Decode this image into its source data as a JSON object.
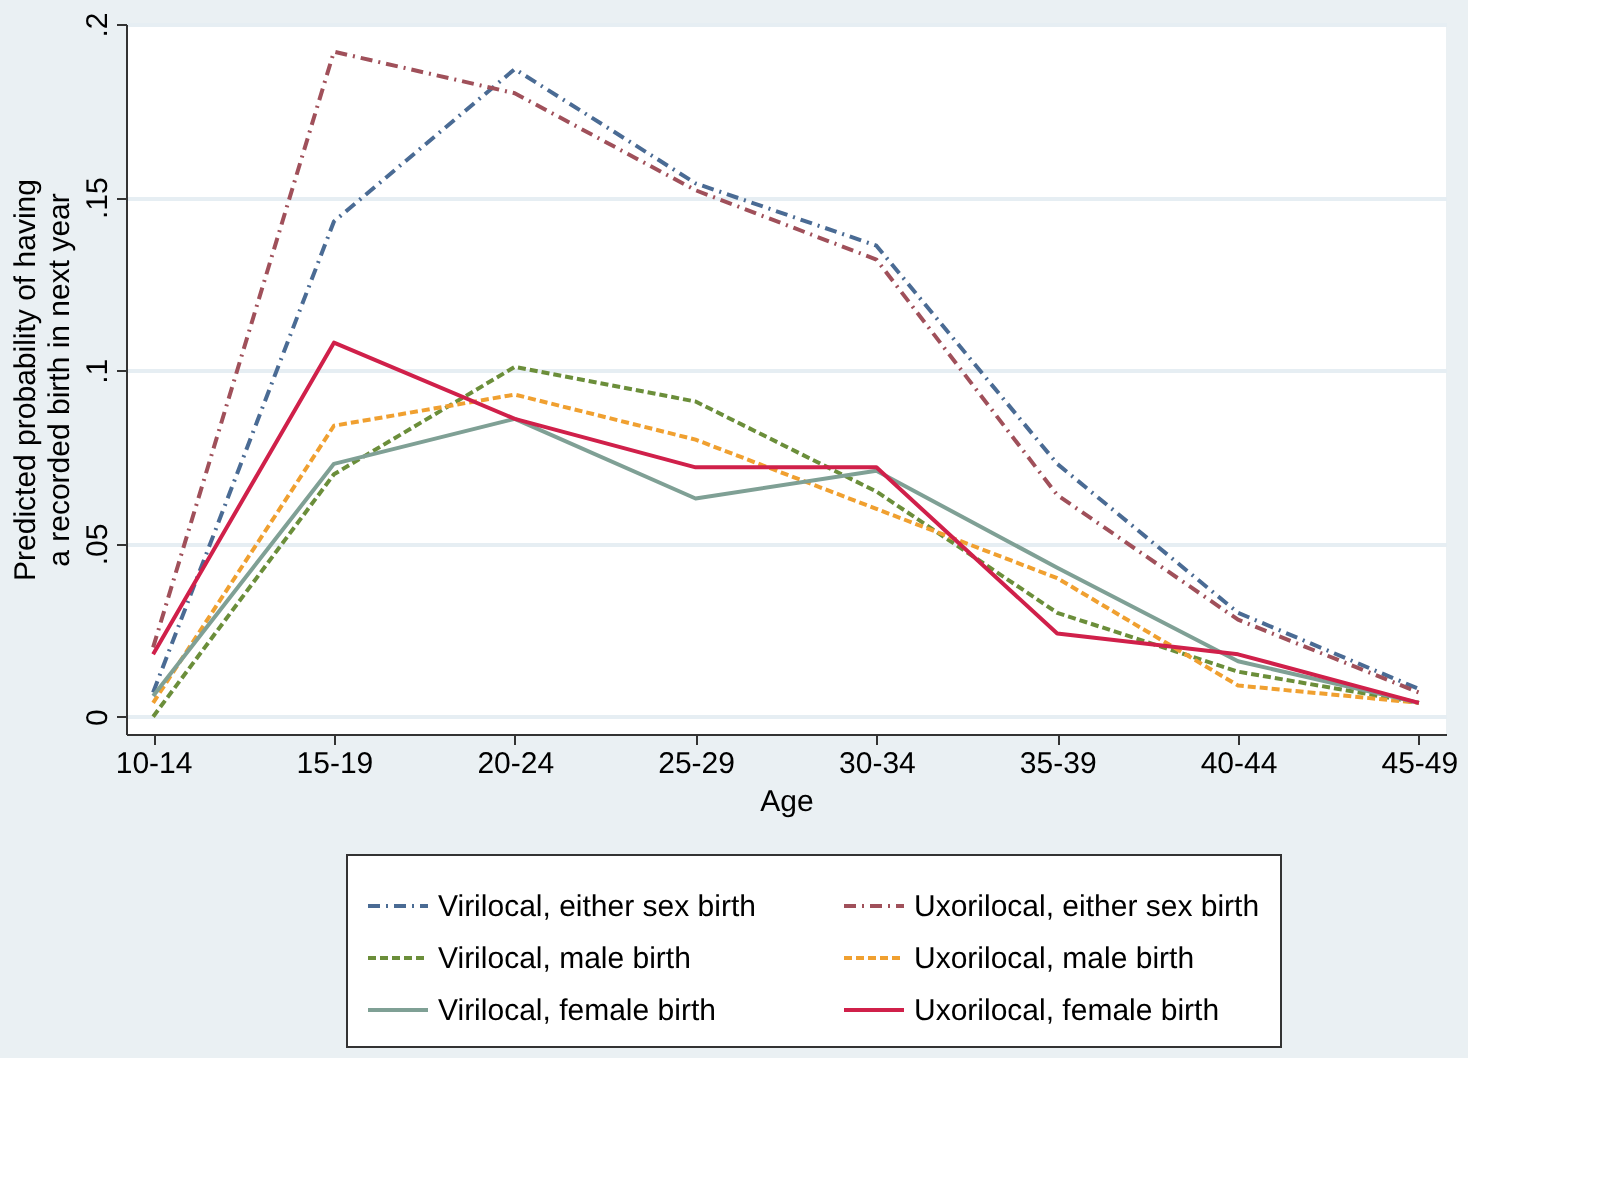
{
  "chart_data": {
    "type": "line",
    "xlabel": "Age",
    "ylabel": "Predicted probability of having\na recorded birth in next year",
    "categories": [
      "10-14",
      "15-19",
      "20-24",
      "25-29",
      "30-34",
      "35-39",
      "40-44",
      "45-49"
    ],
    "series": [
      {
        "name": "Virilocal, either sex birth",
        "color": "#4a6b94",
        "line_style": "dotted",
        "values": [
          0.007,
          0.143,
          0.187,
          0.154,
          0.136,
          0.073,
          0.03,
          0.008
        ]
      },
      {
        "name": "Uxorilocal, either sex birth",
        "color": "#a0505a",
        "line_style": "dotted",
        "values": [
          0.02,
          0.192,
          0.18,
          0.152,
          0.132,
          0.064,
          0.028,
          0.007
        ]
      },
      {
        "name": "Virilocal, male birth",
        "color": "#6b8e3a",
        "line_style": "dashed",
        "values": [
          0.0,
          0.07,
          0.101,
          0.091,
          0.065,
          0.03,
          0.013,
          0.004
        ]
      },
      {
        "name": "Uxorilocal, male birth",
        "color": "#f0a030",
        "line_style": "dashed",
        "values": [
          0.004,
          0.084,
          0.093,
          0.08,
          0.06,
          0.04,
          0.009,
          0.004
        ]
      },
      {
        "name": "Virilocal, female birth",
        "color": "#7fa095",
        "line_style": "solid",
        "values": [
          0.006,
          0.073,
          0.086,
          0.063,
          0.071,
          0.043,
          0.016,
          0.004
        ]
      },
      {
        "name": "Uxorilocal, female birth",
        "color": "#d0204a",
        "line_style": "solid",
        "values": [
          0.018,
          0.108,
          0.086,
          0.072,
          0.072,
          0.024,
          0.018,
          0.004
        ]
      }
    ],
    "ylim": [
      -0.005,
      0.2
    ],
    "yticks": [
      0,
      {
        "value": 0.05,
        "label": ".05"
      },
      {
        "value": 0.1,
        "label": ".1"
      },
      {
        "value": 0.15,
        "label": ".15"
      },
      {
        "value": 0.2,
        "label": ".2"
      }
    ],
    "grid": "y",
    "legend": "bottom",
    "marker": "none"
  }
}
